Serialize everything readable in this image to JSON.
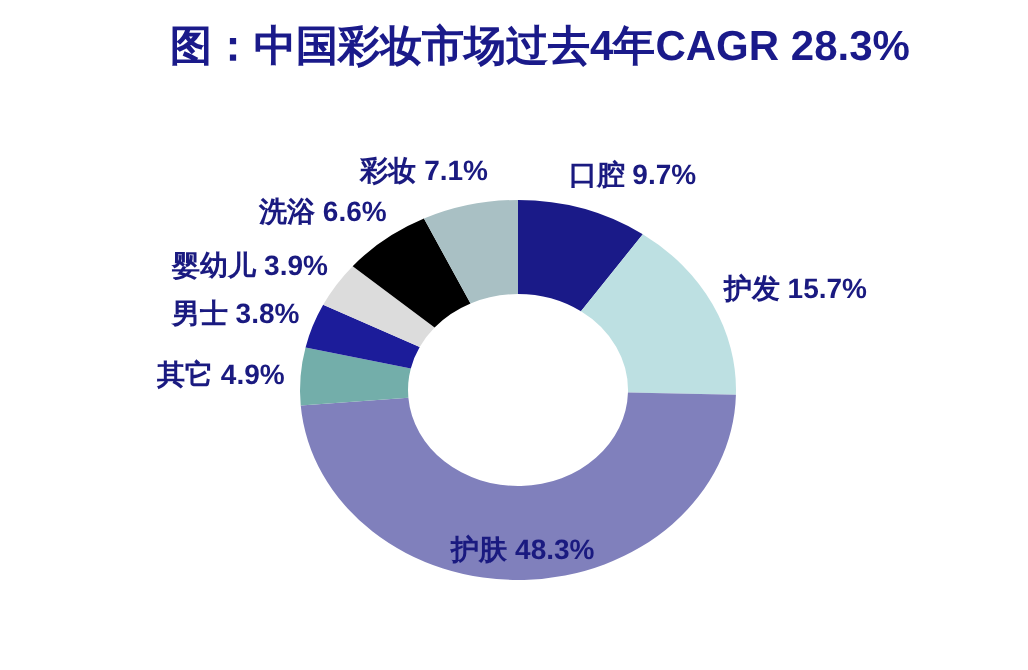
{
  "chart_data": {
    "type": "donut",
    "title": "图：中国彩妆市场过去4年CAGR 28.3%",
    "categories": [
      "口腔",
      "护发",
      "护肤",
      "其它",
      "男士",
      "婴幼儿",
      "洗浴",
      "彩妆"
    ],
    "values": [
      9.7,
      15.7,
      48.3,
      4.9,
      3.8,
      3.9,
      6.6,
      7.1
    ],
    "value_labels": [
      "9.7%",
      "15.7%",
      "48.3%",
      "4.9%",
      "3.8%",
      "3.9%",
      "6.6%",
      "7.1%"
    ],
    "colors": [
      "#1a1a88",
      "#bde0e2",
      "#8080bc",
      "#73aeaa",
      "#1c1c9a",
      "#dcdcdc",
      "#000000",
      "#a9c0c4"
    ]
  }
}
